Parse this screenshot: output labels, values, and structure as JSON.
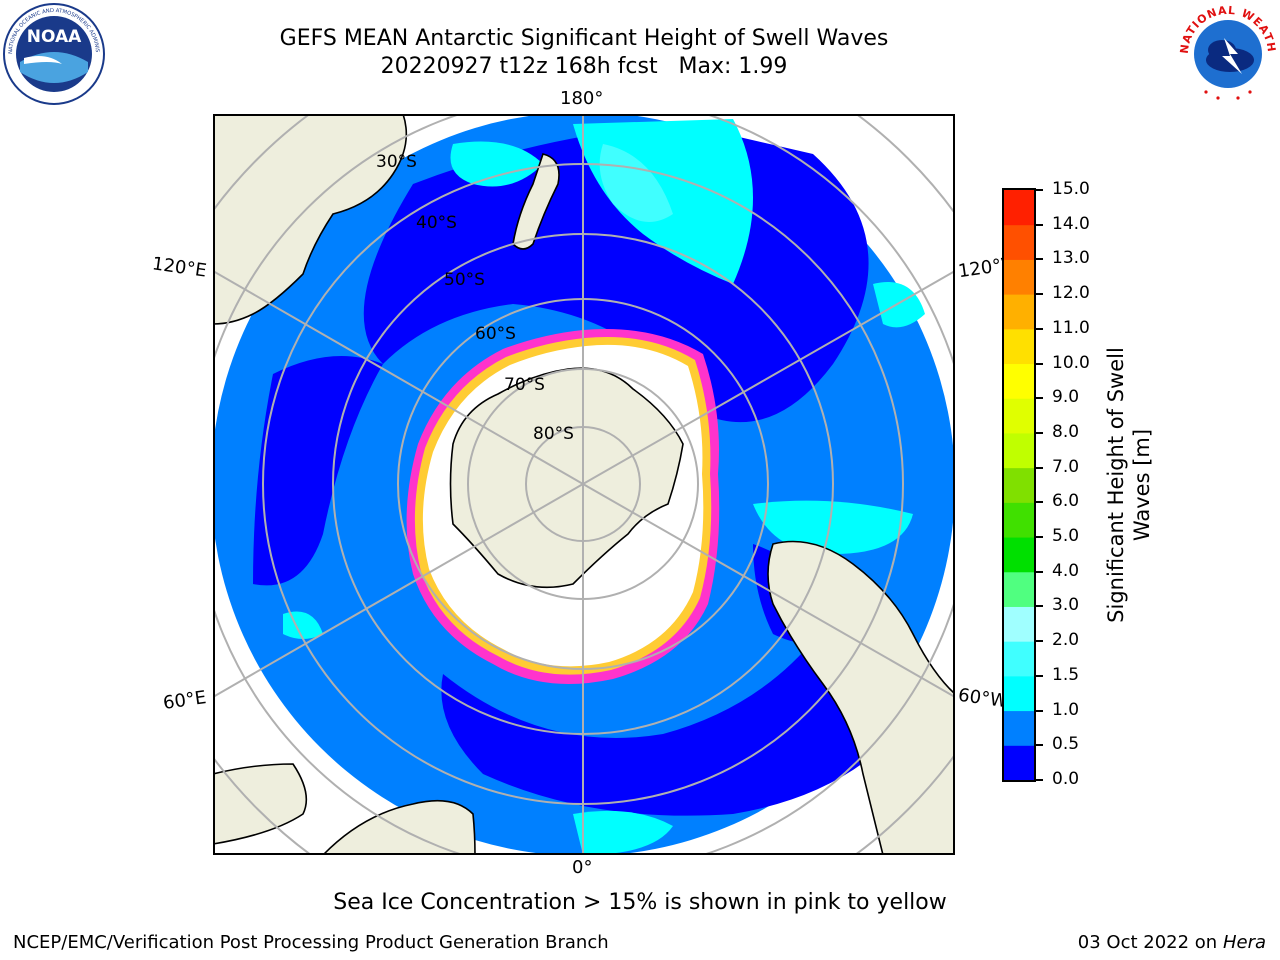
{
  "header": {
    "title_line1": "GEFS MEAN Antarctic Significant Height of Swell Waves",
    "title_line2": "20220927 t12z 168h fcst   Max: 1.99"
  },
  "logos": {
    "noaa_text": "NOAA",
    "noaa_ring": "NATIONAL OCEANIC AND ATMOSPHERIC ADMINISTRATION · U.S. DEPARTMENT OF COMMERCE",
    "nws_ring": "NATIONAL WEATHER SERVICE"
  },
  "map": {
    "longitude_labels": {
      "top": "180°",
      "bottom": "0°",
      "left_upper": "120°E",
      "left_lower": "60°E",
      "right_upper": "120°W",
      "right_lower": "60°W"
    },
    "latitude_labels": [
      "30°S",
      "40°S",
      "50°S",
      "60°S",
      "70°S",
      "80°S"
    ]
  },
  "colorbar": {
    "label": "Significant Height of Swell Waves [m]",
    "ticks": [
      "0.0",
      "0.5",
      "1.0",
      "1.5",
      "2.0",
      "3.0",
      "4.0",
      "5.0",
      "6.0",
      "7.0",
      "8.0",
      "9.0",
      "10.0",
      "11.0",
      "12.0",
      "13.0",
      "14.0",
      "15.0"
    ],
    "colors": [
      "#0000ff",
      "#0080ff",
      "#00ffff",
      "#40ffff",
      "#a0ffff",
      "#50ff80",
      "#00e000",
      "#40e000",
      "#80e000",
      "#c0ff00",
      "#e0ff00",
      "#ffff00",
      "#ffe000",
      "#ffb000",
      "#ff8000",
      "#ff5000",
      "#ff2000"
    ]
  },
  "footer": {
    "note": "Sea Ice Concentration > 15% is shown in pink to yellow",
    "credit": "NCEP/EMC/Verification Post Processing Product Generation Branch",
    "date_prefix": "03 Oct 2022 on ",
    "date_host": "Hera"
  }
}
